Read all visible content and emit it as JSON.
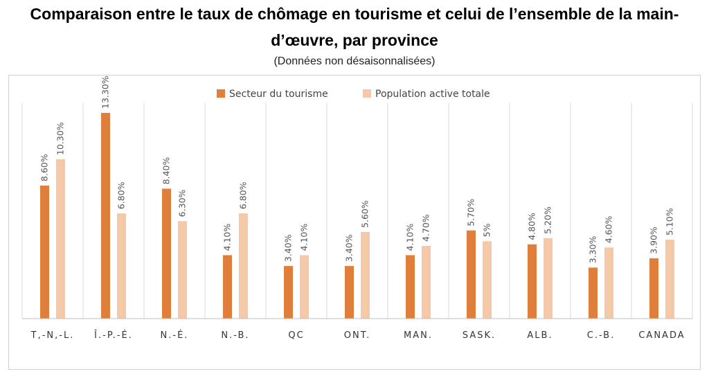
{
  "header": {
    "title_line1": "Comparaison entre le taux de chômage en tourisme et celui de l’ensemble de la main-",
    "title_line2": "d’œuvre, par province",
    "subtitle": "(Données non désaisonnalisées)"
  },
  "colors": {
    "tourism": "#E07E3C",
    "total": "#F5C9A8",
    "gridline": "#d9d9d9"
  },
  "chart_data": {
    "type": "bar",
    "title": "Comparaison entre le taux de chômage en tourisme et celui de l’ensemble de la main-d’œuvre, par province",
    "subtitle": "(Données non désaisonnalisées)",
    "categories": [
      "T,-N,-L.",
      "Î.-P.-É.",
      "N.-É.",
      "N.-B.",
      "QC",
      "ONT.",
      "MAN.",
      "SASK.",
      "ALB.",
      "C.-B.",
      "CANADA"
    ],
    "series": [
      {
        "name": "Secteur du tourisme",
        "values": [
          8.6,
          13.3,
          8.4,
          4.1,
          3.4,
          3.4,
          4.1,
          5.7,
          4.8,
          3.3,
          3.9
        ],
        "labels": [
          "8.60%",
          "13.30%",
          "8.40%",
          "4.10%",
          "3.40%",
          "3.40%",
          "4.10%",
          "5.70%",
          "4.80%",
          "3.30%",
          "3.90%"
        ]
      },
      {
        "name": "Population active totale",
        "values": [
          10.3,
          6.8,
          6.3,
          6.8,
          4.1,
          5.6,
          4.7,
          5.0,
          5.2,
          4.6,
          5.1
        ],
        "labels": [
          "10.30%",
          "6.80%",
          "6.30%",
          "6.80%",
          "4.10%",
          "5.60%",
          "4.70%",
          "5%",
          "5.20%",
          "4.60%",
          "5.10%"
        ]
      }
    ],
    "ylim": [
      0,
      13.3
    ],
    "legend_position": "top",
    "grid": "vertical category separators",
    "xlabel": "",
    "ylabel": ""
  }
}
